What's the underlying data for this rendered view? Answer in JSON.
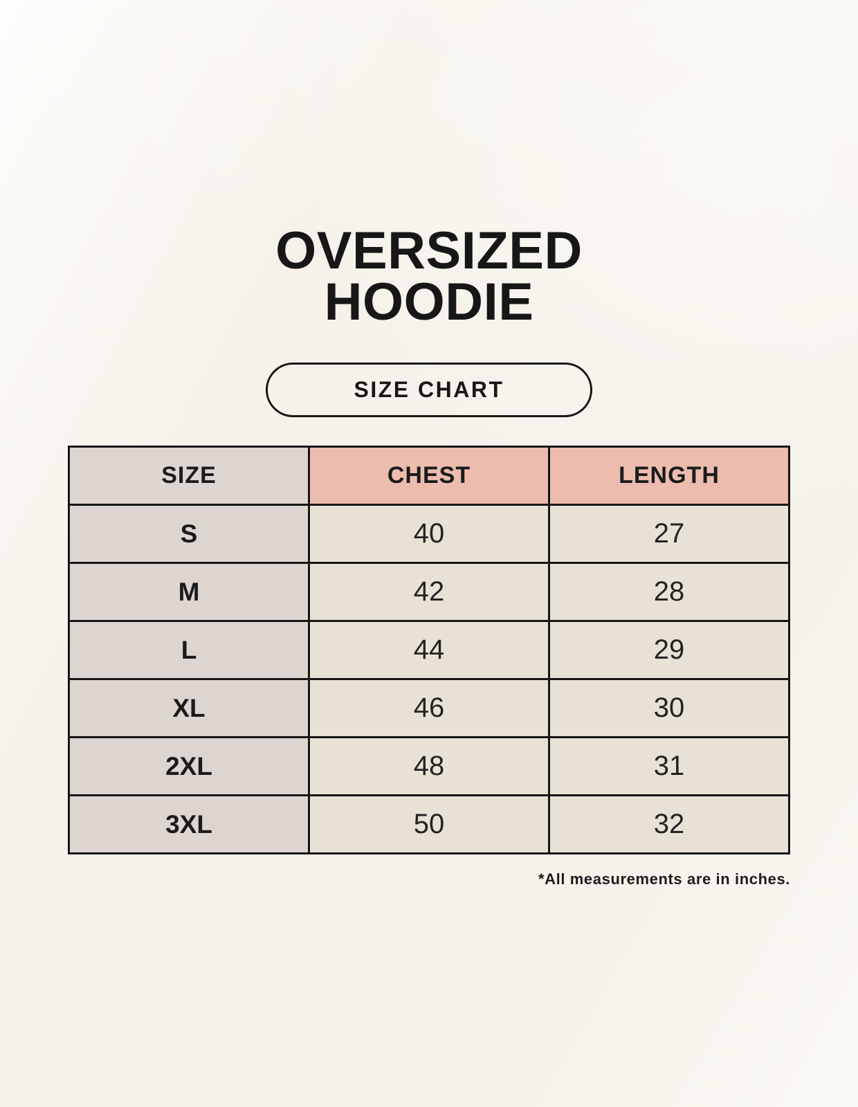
{
  "header": {
    "title_line1": "OVERSIZED",
    "title_line2": "HOODIE",
    "badge_label": "SIZE CHART"
  },
  "table": {
    "headers": [
      "SIZE",
      "CHEST",
      "LENGTH"
    ],
    "rows": [
      {
        "size": "S",
        "chest": "40",
        "length": "27"
      },
      {
        "size": "M",
        "chest": "42",
        "length": "28"
      },
      {
        "size": "L",
        "chest": "44",
        "length": "29"
      },
      {
        "size": "XL",
        "chest": "46",
        "length": "30"
      },
      {
        "size": "2XL",
        "chest": "48",
        "length": "31"
      },
      {
        "size": "3XL",
        "chest": "50",
        "length": "32"
      }
    ],
    "unit_note": "*All measurements are in inches."
  },
  "colors": {
    "background_cream": "#f6f2ea",
    "header_pink": "#ecbcae",
    "size_column_gray": "#ddd6d0",
    "data_cell_cream": "#e8e1d6",
    "border_black": "#161616"
  }
}
